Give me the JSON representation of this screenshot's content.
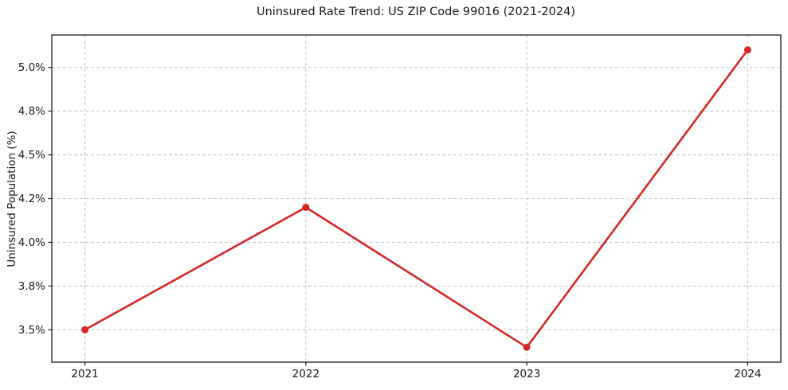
{
  "figure": {
    "title": "Uninsured Rate Trend: US ZIP Code 99016 (2021-2024)",
    "ylabel": "Uninsured Population (%)"
  },
  "chart_data": {
    "type": "line",
    "title": "Uninsured Rate Trend: US ZIP Code 99016 (2021-2024)",
    "categories": [
      "2021",
      "2022",
      "2023",
      "2024"
    ],
    "values": [
      3.5,
      4.2,
      3.4,
      5.1
    ],
    "xlabel": "",
    "ylabel": "Uninsured Population (%)",
    "ylim": [
      3.315,
      5.185
    ],
    "xlim": [
      -0.15,
      3.15
    ],
    "yticks": [
      3.5,
      3.75,
      4.0,
      4.25,
      4.5,
      4.75,
      5.0
    ],
    "ytick_labels": [
      "3.5%",
      "3.8%",
      "4.0%",
      "4.2%",
      "4.5%",
      "4.8%",
      "5.0%"
    ],
    "xtick_labels": [
      "2021",
      "2022",
      "2023",
      "2024"
    ],
    "grid": true,
    "grid_style": "dashed",
    "legend_position": "none",
    "line_color": "#d62728",
    "grid_color": "#c9c9c9",
    "axis_color": "#1a1a1a",
    "marker": "circle"
  }
}
